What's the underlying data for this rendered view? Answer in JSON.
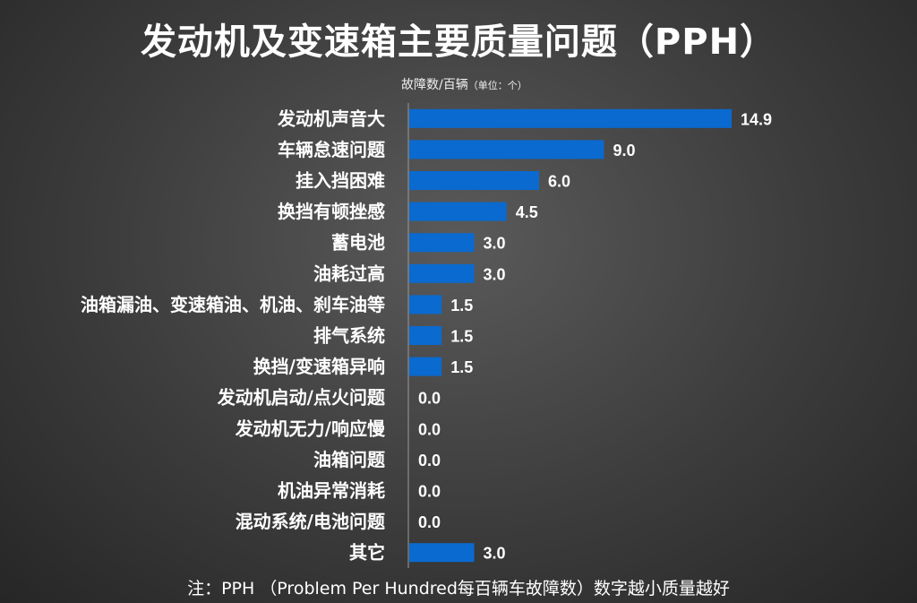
{
  "title": "发动机及变速箱主要质量问题（PPH）",
  "unit_label": "故障数/百辆",
  "unit_label_small": "（单位：个）",
  "footnote": "注：PPH （Problem Per Hundred每百辆车故障数）数字越小质量越好",
  "bar_color": "#0a6ad0",
  "chart_data": {
    "type": "bar",
    "orientation": "horizontal",
    "title": "发动机及变速箱主要质量问题（PPH）",
    "xlabel": "故障数/百辆（单位：个）",
    "categories": [
      "发动机声音大",
      "车辆怠速问题",
      "挂入挡困难",
      "换挡有顿挫感",
      "蓄电池",
      "油耗过高",
      "油箱漏油、变速箱油、机油、刹车油等",
      "排气系统",
      "换挡/变速箱异响",
      "发动机启动/点火问题",
      "发动机无力/响应慢",
      "油箱问题",
      "机油异常消耗",
      "混动系统/电池问题",
      "其它"
    ],
    "values": [
      14.9,
      9.0,
      6.0,
      4.5,
      3.0,
      3.0,
      1.5,
      1.5,
      1.5,
      0.0,
      0.0,
      0.0,
      0.0,
      0.0,
      3.0
    ],
    "value_labels": [
      "14.9",
      "9.0",
      "6.0",
      "4.5",
      "3.0",
      "3.0",
      "1.5",
      "1.5",
      "1.5",
      "0.0",
      "0.0",
      "0.0",
      "0.0",
      "0.0",
      "3.0"
    ],
    "xlim": [
      0,
      14.9
    ],
    "grid": false,
    "legend": "none"
  }
}
